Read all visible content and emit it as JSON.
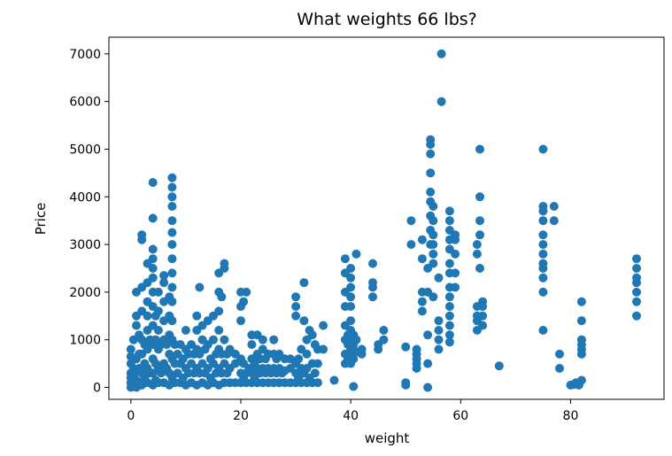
{
  "chart_data": {
    "type": "scatter",
    "title": "What weights 66 lbs?",
    "xlabel": "weight",
    "ylabel": "Price",
    "xlim": [
      -4,
      97
    ],
    "ylim": [
      -250,
      7350
    ],
    "xticks": [
      0,
      20,
      40,
      60,
      80
    ],
    "yticks": [
      0,
      1000,
      2000,
      3000,
      4000,
      5000,
      6000,
      7000
    ],
    "grid": false,
    "legend": "none",
    "marker_color": "#1f77b4",
    "points": [
      [
        0,
        0
      ],
      [
        0,
        100
      ],
      [
        0,
        200
      ],
      [
        0,
        300
      ],
      [
        0,
        500
      ],
      [
        0,
        650
      ],
      [
        0,
        800
      ],
      [
        0.5,
        50
      ],
      [
        0.5,
        250
      ],
      [
        0.5,
        400
      ],
      [
        0.5,
        1000
      ],
      [
        1,
        0
      ],
      [
        1,
        150
      ],
      [
        1,
        350
      ],
      [
        1,
        600
      ],
      [
        1,
        1300
      ],
      [
        1,
        1500
      ],
      [
        1,
        2000
      ],
      [
        1.5,
        100
      ],
      [
        1.5,
        400
      ],
      [
        1.5,
        700
      ],
      [
        1.5,
        1100
      ],
      [
        2,
        50
      ],
      [
        2,
        300
      ],
      [
        2,
        700
      ],
      [
        2,
        1000
      ],
      [
        2,
        1600
      ],
      [
        2,
        2100
      ],
      [
        2,
        3100
      ],
      [
        2,
        3200
      ],
      [
        2.5,
        200
      ],
      [
        2.5,
        500
      ],
      [
        2.5,
        900
      ],
      [
        3,
        100
      ],
      [
        3,
        400
      ],
      [
        3,
        800
      ],
      [
        3,
        1200
      ],
      [
        3,
        1500
      ],
      [
        3,
        1800
      ],
      [
        3,
        2200
      ],
      [
        3,
        2600
      ],
      [
        3.5,
        300
      ],
      [
        3.5,
        1000
      ],
      [
        4,
        50
      ],
      [
        4,
        300
      ],
      [
        4,
        600
      ],
      [
        4,
        900
      ],
      [
        4,
        1300
      ],
      [
        4,
        1700
      ],
      [
        4,
        2000
      ],
      [
        4,
        2300
      ],
      [
        4,
        2500
      ],
      [
        4,
        2700
      ],
      [
        4,
        2900
      ],
      [
        4,
        3550
      ],
      [
        4,
        4300
      ],
      [
        4.5,
        150
      ],
      [
        4.5,
        500
      ],
      [
        4.5,
        1000
      ],
      [
        4.5,
        1500
      ],
      [
        5,
        100
      ],
      [
        5,
        400
      ],
      [
        5,
        800
      ],
      [
        5,
        1200
      ],
      [
        5,
        1600
      ],
      [
        5,
        2000
      ],
      [
        5.5,
        300
      ],
      [
        5.5,
        900
      ],
      [
        6,
        100
      ],
      [
        6,
        500
      ],
      [
        6,
        1000
      ],
      [
        6,
        1400
      ],
      [
        6,
        1800
      ],
      [
        6,
        2200
      ],
      [
        6,
        2350
      ],
      [
        6.5,
        400
      ],
      [
        6.5,
        900
      ],
      [
        7,
        50
      ],
      [
        7,
        300
      ],
      [
        7,
        700
      ],
      [
        7,
        1100
      ],
      [
        7,
        1500
      ],
      [
        7,
        1900
      ],
      [
        7.5,
        200
      ],
      [
        7.5,
        600
      ],
      [
        7.5,
        1000
      ],
      [
        7.5,
        1400
      ],
      [
        7.5,
        1800
      ],
      [
        7.5,
        2100
      ],
      [
        7.5,
        2400
      ],
      [
        7.5,
        2700
      ],
      [
        7.5,
        3000
      ],
      [
        7.5,
        3250
      ],
      [
        7.5,
        3500
      ],
      [
        7.5,
        3800
      ],
      [
        7.5,
        4000
      ],
      [
        7.5,
        4200
      ],
      [
        7.5,
        4400
      ],
      [
        8,
        100
      ],
      [
        8,
        500
      ],
      [
        8,
        900
      ],
      [
        8.5,
        300
      ],
      [
        8.5,
        700
      ],
      [
        9,
        100
      ],
      [
        9,
        500
      ],
      [
        9,
        900
      ],
      [
        9.5,
        200
      ],
      [
        9.5,
        600
      ],
      [
        10,
        50
      ],
      [
        10,
        400
      ],
      [
        10,
        800
      ],
      [
        10,
        1200
      ],
      [
        10.5,
        300
      ],
      [
        10.5,
        700
      ],
      [
        11,
        100
      ],
      [
        11,
        500
      ],
      [
        11,
        900
      ],
      [
        11.5,
        300
      ],
      [
        11.5,
        700
      ],
      [
        12,
        50
      ],
      [
        12,
        400
      ],
      [
        12,
        800
      ],
      [
        12,
        1200
      ],
      [
        12,
        1500
      ],
      [
        12.5,
        300
      ],
      [
        12.5,
        700
      ],
      [
        12.5,
        2100
      ],
      [
        13,
        100
      ],
      [
        13,
        500
      ],
      [
        13,
        1000
      ],
      [
        13,
        1300
      ],
      [
        13.5,
        300
      ],
      [
        13.5,
        800
      ],
      [
        14,
        50
      ],
      [
        14,
        400
      ],
      [
        14,
        900
      ],
      [
        14,
        1400
      ],
      [
        14.5,
        200
      ],
      [
        14.5,
        600
      ],
      [
        15,
        100
      ],
      [
        15,
        500
      ],
      [
        15,
        1000
      ],
      [
        15,
        1500
      ],
      [
        15.5,
        300
      ],
      [
        15.5,
        700
      ],
      [
        16,
        50
      ],
      [
        16,
        400
      ],
      [
        16,
        800
      ],
      [
        16,
        1200
      ],
      [
        16,
        1600
      ],
      [
        16,
        2000
      ],
      [
        16,
        2400
      ],
      [
        16.5,
        300
      ],
      [
        16.5,
        700
      ],
      [
        16.5,
        1900
      ],
      [
        17,
        100
      ],
      [
        17,
        500
      ],
      [
        17,
        1000
      ],
      [
        17,
        2500
      ],
      [
        17,
        2600
      ],
      [
        17.5,
        300
      ],
      [
        17.5,
        700
      ],
      [
        18,
        100
      ],
      [
        18,
        400
      ],
      [
        18,
        800
      ],
      [
        19,
        100
      ],
      [
        19,
        500
      ],
      [
        19,
        700
      ],
      [
        20,
        100
      ],
      [
        20,
        300
      ],
      [
        20,
        600
      ],
      [
        20,
        1400
      ],
      [
        20,
        1700
      ],
      [
        20,
        2000
      ],
      [
        20.5,
        200
      ],
      [
        20.5,
        500
      ],
      [
        20.5,
        1800
      ],
      [
        21,
        100
      ],
      [
        21,
        300
      ],
      [
        21,
        2000
      ],
      [
        21.5,
        400
      ],
      [
        22,
        100
      ],
      [
        22,
        300
      ],
      [
        22,
        600
      ],
      [
        22,
        900
      ],
      [
        22,
        1100
      ],
      [
        22.5,
        200
      ],
      [
        22.5,
        500
      ],
      [
        23,
        100
      ],
      [
        23,
        400
      ],
      [
        23,
        700
      ],
      [
        23,
        1100
      ],
      [
        23.5,
        300
      ],
      [
        23.5,
        600
      ],
      [
        24,
        100
      ],
      [
        24,
        400
      ],
      [
        24,
        800
      ],
      [
        24,
        1000
      ],
      [
        24.5,
        300
      ],
      [
        24.5,
        600
      ],
      [
        25,
        100
      ],
      [
        25,
        400
      ],
      [
        25,
        700
      ],
      [
        25.5,
        300
      ],
      [
        26,
        100
      ],
      [
        26,
        400
      ],
      [
        26,
        700
      ],
      [
        26,
        1000
      ],
      [
        26.5,
        300
      ],
      [
        26.5,
        600
      ],
      [
        27,
        100
      ],
      [
        27,
        400
      ],
      [
        27,
        700
      ],
      [
        27.5,
        300
      ],
      [
        28,
        100
      ],
      [
        28,
        350
      ],
      [
        28,
        600
      ],
      [
        29,
        100
      ],
      [
        29,
        400
      ],
      [
        29,
        600
      ],
      [
        30,
        100
      ],
      [
        30,
        300
      ],
      [
        30,
        500
      ],
      [
        30,
        1500
      ],
      [
        30,
        1700
      ],
      [
        30,
        1900
      ],
      [
        30.5,
        200
      ],
      [
        30.5,
        600
      ],
      [
        31,
        100
      ],
      [
        31,
        400
      ],
      [
        31,
        800
      ],
      [
        31.5,
        300
      ],
      [
        31.5,
        1400
      ],
      [
        31.5,
        2200
      ],
      [
        32,
        100
      ],
      [
        32,
        400
      ],
      [
        32,
        700
      ],
      [
        32,
        1000
      ],
      [
        32.5,
        200
      ],
      [
        32.5,
        1200
      ],
      [
        33,
        100
      ],
      [
        33,
        500
      ],
      [
        33,
        1100
      ],
      [
        33.5,
        300
      ],
      [
        33.5,
        900
      ],
      [
        34,
        100
      ],
      [
        34,
        500
      ],
      [
        34,
        800
      ],
      [
        35,
        800
      ],
      [
        35,
        1300
      ],
      [
        37,
        150
      ],
      [
        39,
        500
      ],
      [
        39,
        700
      ],
      [
        39,
        1000
      ],
      [
        39,
        1300
      ],
      [
        39,
        1700
      ],
      [
        39,
        2000
      ],
      [
        39,
        2400
      ],
      [
        39,
        2700
      ],
      [
        39.5,
        600
      ],
      [
        39.5,
        900
      ],
      [
        39.5,
        1100
      ],
      [
        40,
        500
      ],
      [
        40,
        650
      ],
      [
        40,
        800
      ],
      [
        40,
        950
      ],
      [
        40,
        1100
      ],
      [
        40,
        1200
      ],
      [
        40,
        1400
      ],
      [
        40,
        1700
      ],
      [
        40,
        1900
      ],
      [
        40,
        2100
      ],
      [
        40,
        2300
      ],
      [
        40,
        2500
      ],
      [
        40.5,
        20
      ],
      [
        40.5,
        600
      ],
      [
        40.5,
        900
      ],
      [
        40.5,
        1100
      ],
      [
        41,
        750
      ],
      [
        41,
        1000
      ],
      [
        41,
        2800
      ],
      [
        42,
        700
      ],
      [
        42,
        800
      ],
      [
        44,
        1900
      ],
      [
        44,
        2100
      ],
      [
        44,
        2200
      ],
      [
        44,
        2600
      ],
      [
        45,
        800
      ],
      [
        45,
        900
      ],
      [
        46,
        1000
      ],
      [
        46,
        1200
      ],
      [
        50,
        50
      ],
      [
        50,
        100
      ],
      [
        50,
        850
      ],
      [
        51,
        3000
      ],
      [
        51,
        3500
      ],
      [
        52,
        400
      ],
      [
        52,
        500
      ],
      [
        52,
        600
      ],
      [
        52,
        700
      ],
      [
        52,
        800
      ],
      [
        53,
        1600
      ],
      [
        53,
        1800
      ],
      [
        53,
        2000
      ],
      [
        53,
        2700
      ],
      [
        53,
        3100
      ],
      [
        54,
        0
      ],
      [
        54,
        500
      ],
      [
        54,
        1100
      ],
      [
        54,
        2000
      ],
      [
        54,
        2500
      ],
      [
        54.5,
        3000
      ],
      [
        54.5,
        3300
      ],
      [
        54.5,
        3600
      ],
      [
        54.5,
        3900
      ],
      [
        54.5,
        4100
      ],
      [
        54.5,
        4500
      ],
      [
        54.5,
        4900
      ],
      [
        54.5,
        5100
      ],
      [
        54.5,
        5200
      ],
      [
        55,
        1900
      ],
      [
        55,
        2600
      ],
      [
        55,
        2800
      ],
      [
        55,
        3000
      ],
      [
        55,
        3200
      ],
      [
        55,
        3500
      ],
      [
        55,
        3800
      ],
      [
        56,
        800
      ],
      [
        56,
        1000
      ],
      [
        56,
        1200
      ],
      [
        56,
        1400
      ],
      [
        56,
        2300
      ],
      [
        56.5,
        6000
      ],
      [
        56.5,
        7000
      ],
      [
        58,
        950
      ],
      [
        58,
        1100
      ],
      [
        58,
        1300
      ],
      [
        58,
        1500
      ],
      [
        58,
        1700
      ],
      [
        58,
        1900
      ],
      [
        58,
        2100
      ],
      [
        58,
        2400
      ],
      [
        58,
        2600
      ],
      [
        58,
        2900
      ],
      [
        58,
        3100
      ],
      [
        58,
        3300
      ],
      [
        58,
        3500
      ],
      [
        58,
        3700
      ],
      [
        59,
        2100
      ],
      [
        59,
        2400
      ],
      [
        59,
        2800
      ],
      [
        59,
        3100
      ],
      [
        59,
        3200
      ],
      [
        63,
        1200
      ],
      [
        63,
        1400
      ],
      [
        63,
        1500
      ],
      [
        63,
        1700
      ],
      [
        63,
        2800
      ],
      [
        63,
        3000
      ],
      [
        63.5,
        2500
      ],
      [
        63.5,
        3200
      ],
      [
        63.5,
        3500
      ],
      [
        63.5,
        4000
      ],
      [
        63.5,
        5000
      ],
      [
        64,
        1300
      ],
      [
        64,
        1500
      ],
      [
        64,
        1700
      ],
      [
        64,
        1800
      ],
      [
        67,
        450
      ],
      [
        75,
        1200
      ],
      [
        75,
        2000
      ],
      [
        75,
        2300
      ],
      [
        75,
        2500
      ],
      [
        75,
        2600
      ],
      [
        75,
        2800
      ],
      [
        75,
        3000
      ],
      [
        75,
        3200
      ],
      [
        75,
        3500
      ],
      [
        75,
        3700
      ],
      [
        75,
        3800
      ],
      [
        75,
        5000
      ],
      [
        77,
        3500
      ],
      [
        77,
        3800
      ],
      [
        78,
        400
      ],
      [
        78,
        700
      ],
      [
        80,
        50
      ],
      [
        80.5,
        60
      ],
      [
        81,
        100
      ],
      [
        81.5,
        50
      ],
      [
        82,
        150
      ],
      [
        82,
        700
      ],
      [
        82,
        800
      ],
      [
        82,
        900
      ],
      [
        82,
        1000
      ],
      [
        82,
        1400
      ],
      [
        82,
        1800
      ],
      [
        92,
        1500
      ],
      [
        92,
        1800
      ],
      [
        92,
        2000
      ],
      [
        92,
        2200
      ],
      [
        92,
        2300
      ],
      [
        92,
        2500
      ],
      [
        92,
        2700
      ]
    ]
  }
}
